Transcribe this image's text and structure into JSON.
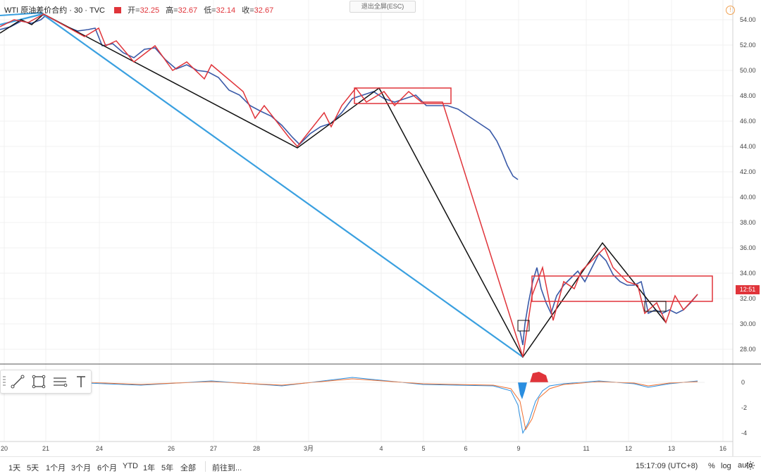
{
  "header": {
    "symbol": "WTI 原油差价合约 · 30 · TVC",
    "open_label": "开=",
    "open": "32.25",
    "high_label": "高=",
    "high": "32.67",
    "low_label": "低=",
    "low": "32.14",
    "close_label": "收=",
    "close": "32.67"
  },
  "esc_button": "退出全屏(ESC)",
  "warning_icon": "warning-icon",
  "last_price_tag": "12:51",
  "price_axis": [
    "54.00",
    "52.00",
    "50.00",
    "48.00",
    "46.00",
    "44.00",
    "42.00",
    "40.00",
    "38.00",
    "36.00",
    "34.00",
    "32.00",
    "30.00",
    "28.00"
  ],
  "indicator_axis": [
    "0",
    "-2",
    "-4"
  ],
  "time_axis": [
    "20",
    "21",
    "24",
    "26",
    "27",
    "28",
    "3月",
    "4",
    "5",
    "6",
    "9",
    "11",
    "12",
    "13",
    "16"
  ],
  "drawing_tools": [
    "trend-line-icon",
    "rectangle-icon",
    "fib-icon",
    "text-icon"
  ],
  "bottom_bar": {
    "ranges": [
      "1天",
      "5天",
      "1个月",
      "3个月",
      "6个月",
      "YTD",
      "1年",
      "5年",
      "全部"
    ],
    "goto": "前往到...",
    "time": "15:17:09 (UTC+8)",
    "percent": "%",
    "log": "log",
    "auto": "auto"
  },
  "colors": {
    "candle": "#3a5aa8",
    "down_line": "#e0343a",
    "zigzag_black": "#111111",
    "trend_blue": "#3aa0e0",
    "macd_up": "#e0343a",
    "macd_down": "#2a8ee0"
  }
}
